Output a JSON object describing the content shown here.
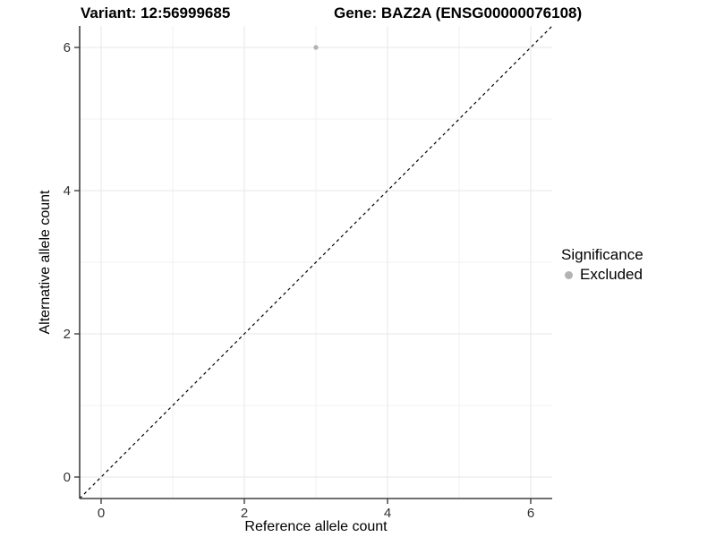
{
  "chart_data": {
    "type": "scatter",
    "title_left": "Variant: 12:56999685",
    "title_right": "Gene: BAZ2A (ENSG00000076108)",
    "xlabel": "Reference allele count",
    "ylabel": "Alternative allele count",
    "xlim": [
      -0.3,
      6.3
    ],
    "ylim": [
      -0.3,
      6.3
    ],
    "x_ticks": [
      0,
      2,
      4,
      6
    ],
    "y_ticks": [
      0,
      2,
      4,
      6
    ],
    "x_minor_ticks": [
      1,
      3,
      5
    ],
    "y_minor_ticks": [
      1,
      3,
      5
    ],
    "grid": true,
    "legend": {
      "position": "right",
      "title": "Significance"
    },
    "series": [
      {
        "name": "Excluded",
        "color": "#b3b3b3",
        "points": [
          [
            3,
            6
          ]
        ]
      }
    ],
    "identity_line": {
      "style": "dashed",
      "color": "#000000"
    },
    "colors": {
      "axis_line": "#404040",
      "tick_label": "#333333",
      "grid_major": "#e7e7e7",
      "grid_minor": "#f2f2f2"
    }
  }
}
